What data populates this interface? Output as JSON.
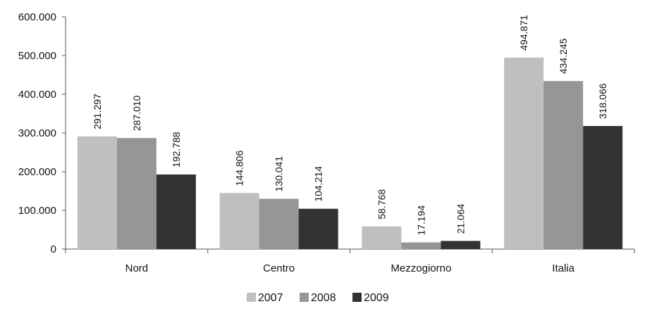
{
  "chart_data": {
    "type": "bar",
    "title": "",
    "xlabel": "",
    "ylabel": "",
    "categories": [
      "Nord",
      "Centro",
      "Mezzogiorno",
      "Italia"
    ],
    "series": [
      {
        "name": "2007",
        "color": "#bfbfbf",
        "values": [
          291297,
          144806,
          58768,
          494871
        ],
        "labels": [
          "291.297",
          "144.806",
          "58.768",
          "494.871"
        ]
      },
      {
        "name": "2008",
        "color": "#969696",
        "values": [
          287010,
          130041,
          17194,
          434245
        ],
        "labels": [
          "287.010",
          "130.041",
          "17.194",
          "434.245"
        ]
      },
      {
        "name": "2009",
        "color": "#333333",
        "values": [
          192788,
          104214,
          21064,
          318066
        ],
        "labels": [
          "192.788",
          "104.214",
          "21.064",
          "318.066"
        ]
      }
    ],
    "ylim": [
      0,
      600000
    ],
    "yticks": [
      0,
      100000,
      200000,
      300000,
      400000,
      500000,
      600000
    ],
    "ytick_labels": [
      "0",
      "100.000",
      "200.000",
      "300.000",
      "400.000",
      "500.000",
      "600.000"
    ],
    "grid": false,
    "legend_position": "bottom"
  }
}
